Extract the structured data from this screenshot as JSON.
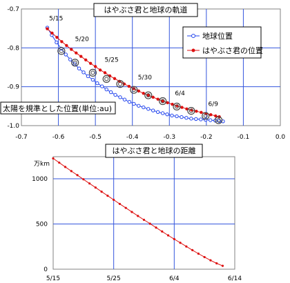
{
  "chart_data": [
    {
      "type": "line",
      "title": "はやぶさ君と地球の軌道",
      "note": "太陽を規準とした位置(単位:au)",
      "xlim": [
        -0.7,
        0.0
      ],
      "ylim": [
        -1.0,
        -0.7
      ],
      "xticks": [
        "-0.7",
        "-0.6",
        "-0.5",
        "-0.4",
        "-0.3",
        "-0.2",
        "-0.1",
        "0.0"
      ],
      "yticks": [
        "-0.7",
        "-0.8",
        "-0.9",
        "-1.0"
      ],
      "legend_position": "top-right",
      "grid": true,
      "date_labels": [
        {
          "text": "5/15",
          "x": -0.625,
          "y": -0.751
        },
        {
          "text": "5/20",
          "x": -0.555,
          "y": -0.804
        },
        {
          "text": "5/25",
          "x": -0.475,
          "y": -0.857
        },
        {
          "text": "5/30",
          "x": -0.385,
          "y": -0.902
        },
        {
          "text": "6/4",
          "x": -0.285,
          "y": -0.943
        },
        {
          "text": "6/9",
          "x": -0.195,
          "y": -0.971
        }
      ],
      "series": [
        {
          "name": "地球位置",
          "color": "#2244ee",
          "marker": "open-circle",
          "x": [
            -0.63,
            -0.618,
            -0.605,
            -0.592,
            -0.58,
            -0.568,
            -0.556,
            -0.544,
            -0.532,
            -0.52,
            -0.507,
            -0.495,
            -0.482,
            -0.47,
            -0.458,
            -0.446,
            -0.433,
            -0.421,
            -0.408,
            -0.396,
            -0.383,
            -0.37,
            -0.357,
            -0.344,
            -0.331,
            -0.318,
            -0.306,
            -0.293,
            -0.28,
            -0.267,
            -0.254,
            -0.241,
            -0.228,
            -0.215,
            -0.202,
            -0.189,
            -0.176,
            -0.165,
            -0.155
          ],
          "y": [
            -0.748,
            -0.767,
            -0.786,
            -0.802,
            -0.817,
            -0.83,
            -0.842,
            -0.853,
            -0.863,
            -0.873,
            -0.882,
            -0.891,
            -0.899,
            -0.907,
            -0.914,
            -0.921,
            -0.927,
            -0.933,
            -0.939,
            -0.944,
            -0.949,
            -0.953,
            -0.957,
            -0.961,
            -0.965,
            -0.968,
            -0.971,
            -0.974,
            -0.976,
            -0.978,
            -0.98,
            -0.982,
            -0.983,
            -0.984,
            -0.985,
            -0.986,
            -0.987,
            -0.988,
            -0.989
          ]
        },
        {
          "name": "はやぶさ君の位置",
          "color": "#dd1111",
          "marker": "filled-circle",
          "x": [
            -0.63,
            -0.617,
            -0.604,
            -0.591,
            -0.578,
            -0.565,
            -0.552,
            -0.539,
            -0.526,
            -0.513,
            -0.5,
            -0.487,
            -0.474,
            -0.461,
            -0.448,
            -0.435,
            -0.422,
            -0.409,
            -0.396,
            -0.383,
            -0.37,
            -0.357,
            -0.344,
            -0.331,
            -0.318,
            -0.305,
            -0.292,
            -0.279,
            -0.266,
            -0.253,
            -0.24,
            -0.227,
            -0.214,
            -0.201,
            -0.188,
            -0.175,
            -0.165
          ],
          "y": [
            -0.751,
            -0.762,
            -0.773,
            -0.784,
            -0.794,
            -0.804,
            -0.813,
            -0.822,
            -0.831,
            -0.84,
            -0.848,
            -0.857,
            -0.864,
            -0.872,
            -0.879,
            -0.886,
            -0.893,
            -0.899,
            -0.905,
            -0.911,
            -0.917,
            -0.922,
            -0.927,
            -0.932,
            -0.937,
            -0.941,
            -0.945,
            -0.949,
            -0.953,
            -0.957,
            -0.96,
            -0.963,
            -0.966,
            -0.969,
            -0.972,
            -0.975,
            -0.977
          ]
        }
      ],
      "highlighted_points": {
        "color": "#444444",
        "marker": "double-circle",
        "x": [
          -0.592,
          -0.555,
          -0.507,
          -0.47,
          -0.433,
          -0.396,
          -0.357,
          -0.318,
          -0.28,
          -0.241,
          -0.202,
          -0.167
        ],
        "y": [
          -0.808,
          -0.838,
          -0.864,
          -0.88,
          -0.893,
          -0.908,
          -0.922,
          -0.937,
          -0.951,
          -0.962,
          -0.975,
          -0.986
        ]
      }
    },
    {
      "type": "line",
      "title": "はやぶさ君と地球の距離",
      "ylabel": "万km",
      "xlim": [
        0,
        30
      ],
      "ylim": [
        0,
        1000
      ],
      "xticks": [
        {
          "value": 0,
          "label": "5/15"
        },
        {
          "value": 10,
          "label": "5/25"
        },
        {
          "value": 20,
          "label": "6/4"
        },
        {
          "value": 30,
          "label": "6/14"
        }
      ],
      "yticks": [
        {
          "value": 0,
          "label": "0"
        },
        {
          "value": 500,
          "label": "500"
        },
        {
          "value": 1000,
          "label": "1000"
        }
      ],
      "grid": true,
      "series": [
        {
          "color": "#dd1111",
          "marker": "small-dot",
          "x": [
            0,
            1,
            2,
            3,
            4,
            5,
            6,
            7,
            8,
            9,
            10,
            11,
            12,
            13,
            14,
            15,
            16,
            17,
            18,
            19,
            20,
            21,
            22,
            23,
            24,
            25,
            26,
            27,
            28
          ],
          "y": [
            1225,
            1178,
            1131,
            1085,
            1040,
            994,
            948,
            903,
            857,
            812,
            767,
            722,
            678,
            633,
            589,
            546,
            503,
            460,
            417,
            374,
            333,
            292,
            251,
            211,
            172,
            134,
            98,
            65,
            37
          ]
        }
      ]
    }
  ]
}
